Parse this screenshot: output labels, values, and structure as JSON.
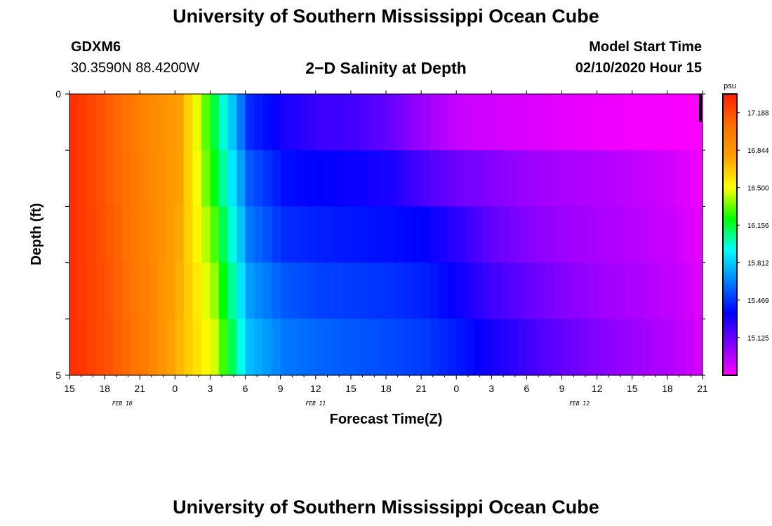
{
  "header": {
    "title": "University of Southern Mississippi Ocean Cube",
    "station_id": "GDXM6",
    "station_coords": "30.3590N 88.4200W",
    "chart_title": "2−D Salinity at Depth",
    "model_start_label": "Model Start Time",
    "model_start_value": "02/10/2020 Hour 15"
  },
  "footer": {
    "title": "University of Southern Mississippi Ocean Cube"
  },
  "chart_data": {
    "type": "heatmap",
    "title": "2−D Salinity at Depth",
    "xlabel": "Forecast Time(Z)",
    "ylabel": "Depth (ft)",
    "x_tick_labels": [
      "15",
      "18",
      "21",
      "0",
      "3",
      "6",
      "9",
      "12",
      "15",
      "18",
      "21",
      "0",
      "3",
      "6",
      "9",
      "12",
      "15",
      "18",
      "21"
    ],
    "x_date_labels": [
      {
        "label": "FEB 10",
        "tick_index": 1.5
      },
      {
        "label": "FEB 11",
        "tick_index": 7
      },
      {
        "label": "FEB 12",
        "tick_index": 14.5
      }
    ],
    "xlim_hours": [
      0,
      54
    ],
    "y_tick_labels": [
      "0",
      "5"
    ],
    "ylim": [
      0,
      5
    ],
    "colorbar": {
      "unit": "psu",
      "tick_labels": [
        "17.188",
        "16.844",
        "16.500",
        "16.156",
        "15.812",
        "15.469",
        "15.125"
      ],
      "range": [
        14.78,
        17.36
      ],
      "colors_high_to_low": [
        "#ff2000",
        "#ff7000",
        "#ffa000",
        "#ffff00",
        "#00ff00",
        "#00ffff",
        "#0080ff",
        "#0000ff",
        "#8000ff",
        "#ff00ff"
      ]
    },
    "depth_rows": [
      0,
      1,
      2,
      3,
      4
    ],
    "hours": [
      0,
      3,
      6,
      9,
      12,
      15,
      18,
      21,
      24,
      27,
      30,
      33,
      36,
      39,
      42,
      45,
      48,
      51,
      54
    ],
    "values": [
      [
        17.3,
        17.15,
        16.95,
        16.8,
        16.15,
        15.45,
        15.3,
        15.22,
        15.2,
        15.12,
        15.0,
        14.9,
        14.88,
        14.86,
        14.84,
        14.82,
        14.8,
        14.8,
        14.79
      ],
      [
        17.3,
        17.15,
        16.97,
        16.78,
        16.2,
        15.55,
        15.38,
        15.35,
        15.33,
        15.3,
        15.18,
        15.1,
        15.05,
        15.0,
        14.97,
        14.95,
        14.92,
        14.88,
        14.8
      ],
      [
        17.3,
        17.16,
        16.98,
        16.76,
        16.3,
        15.62,
        15.45,
        15.42,
        15.4,
        15.38,
        15.35,
        15.25,
        15.12,
        15.05,
        15.0,
        14.97,
        14.94,
        14.9,
        14.82
      ],
      [
        17.3,
        17.17,
        16.99,
        16.74,
        16.38,
        15.7,
        15.55,
        15.5,
        15.48,
        15.46,
        15.42,
        15.32,
        15.2,
        15.12,
        15.05,
        15.0,
        14.96,
        14.92,
        14.84
      ],
      [
        17.3,
        17.18,
        17.0,
        16.72,
        16.45,
        15.78,
        15.62,
        15.58,
        15.55,
        15.52,
        15.48,
        15.4,
        15.3,
        15.2,
        15.12,
        15.05,
        15.0,
        14.95,
        14.86
      ]
    ]
  }
}
